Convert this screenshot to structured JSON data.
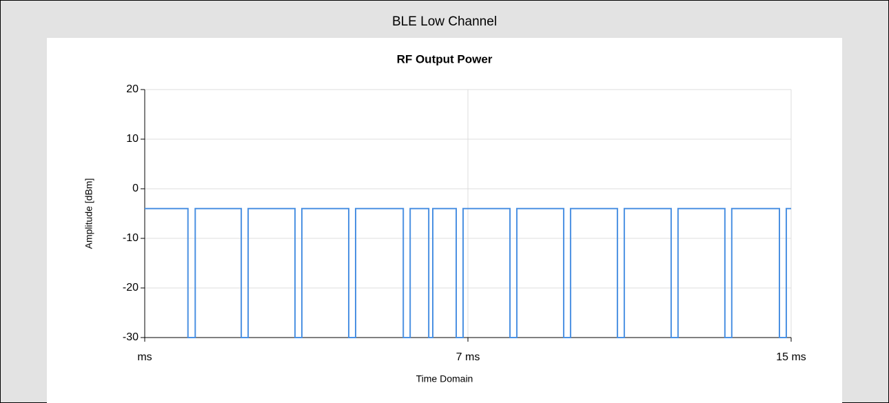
{
  "header": "BLE Low Channel",
  "chart_data": {
    "type": "line",
    "title": "RF Output Power",
    "x_label": "Time Domain",
    "y_label": "Amplitude [dBm]",
    "x": [
      -1,
      0.07,
      0.07,
      0.25,
      0.25,
      1.39,
      1.39,
      1.56,
      1.56,
      2.72,
      2.72,
      2.89,
      2.89,
      4.05,
      4.05,
      4.22,
      4.22,
      5.4,
      5.4,
      5.57,
      5.57,
      6.03,
      6.03,
      6.13,
      6.13,
      6.71,
      6.71,
      6.88,
      6.88,
      8.04,
      8.04,
      8.21,
      8.21,
      9.37,
      9.37,
      9.54,
      9.54,
      10.7,
      10.7,
      10.87,
      10.87,
      12.03,
      12.03,
      12.2,
      12.2,
      13.36,
      13.36,
      13.53,
      13.53,
      14.71,
      14.71,
      14.88,
      14.88,
      15
    ],
    "series": [
      {
        "name": "RF Output Power",
        "color": "#4a90e2",
        "values": [
          -4,
          -4,
          -30,
          -30,
          -4,
          -4,
          -30,
          -30,
          -4,
          -4,
          -30,
          -30,
          -4,
          -4,
          -30,
          -30,
          -4,
          -4,
          -30,
          -30,
          -4,
          -4,
          -30,
          -30,
          -4,
          -4,
          -30,
          -30,
          -4,
          -4,
          -30,
          -30,
          -4,
          -4,
          -30,
          -30,
          -4,
          -4,
          -30,
          -30,
          -4,
          -4,
          -30,
          -30,
          -4,
          -4,
          -30,
          -30,
          -4,
          -4,
          -30,
          -30,
          -4,
          -4
        ]
      }
    ],
    "xlim": [
      -1,
      15
    ],
    "xticks": [
      {
        "value": -1,
        "label": "ms"
      },
      {
        "value": 7,
        "label": "7 ms"
      },
      {
        "value": 15,
        "label": "15 ms"
      }
    ],
    "ylim": [
      -30,
      20
    ],
    "yticks": [
      -30,
      -20,
      -10,
      0,
      10,
      20
    ],
    "grid": true
  }
}
